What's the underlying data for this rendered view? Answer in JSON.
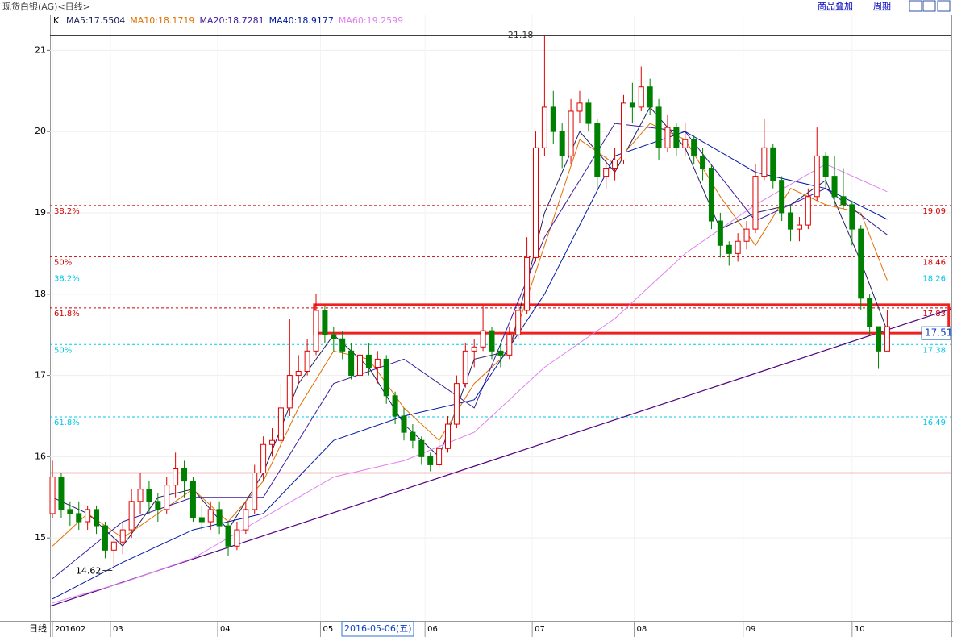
{
  "header": {
    "title": "现货白银(AG)<日线>",
    "buttons": [
      "商品叠加",
      "周期"
    ]
  },
  "chart_data": {
    "type": "candlestick",
    "indicator": "K",
    "x_axis_label": "日线",
    "cursor_date": "2016-05-06(五)",
    "xlim": [
      -0.28,
      102.3
    ],
    "xticks": [
      {
        "value": 0,
        "label": "201602"
      },
      {
        "value": 6.6,
        "label": "03"
      },
      {
        "value": 18.8,
        "label": "04"
      },
      {
        "value": 30.5,
        "label": "05"
      },
      {
        "value": 42.4,
        "label": "06"
      },
      {
        "value": 54.6,
        "label": "07"
      },
      {
        "value": 66.2,
        "label": "08"
      },
      {
        "value": 78.6,
        "label": "09"
      },
      {
        "value": 91.0,
        "label": "10"
      }
    ],
    "ylim": [
      13.98,
      21.44
    ],
    "yticks": [
      15,
      16,
      17,
      18,
      19,
      20,
      21
    ],
    "grid": true,
    "up_color": "#e00000",
    "down_color": "#008000",
    "ohlc": [
      [
        15.3,
        15.95,
        15.25,
        15.75
      ],
      [
        15.75,
        15.8,
        15.25,
        15.35
      ],
      [
        15.35,
        15.45,
        15.15,
        15.3
      ],
      [
        15.3,
        15.45,
        15.1,
        15.2
      ],
      [
        15.2,
        15.4,
        15.1,
        15.35
      ],
      [
        15.35,
        15.4,
        15.05,
        15.15
      ],
      [
        15.15,
        15.2,
        14.75,
        14.85
      ],
      [
        14.85,
        15.0,
        14.62,
        14.95
      ],
      [
        14.95,
        15.2,
        14.8,
        15.1
      ],
      [
        15.1,
        15.6,
        15.0,
        15.45
      ],
      [
        15.45,
        15.8,
        15.3,
        15.6
      ],
      [
        15.6,
        15.7,
        15.3,
        15.45
      ],
      [
        15.45,
        15.55,
        15.2,
        15.35
      ],
      [
        15.35,
        15.75,
        15.3,
        15.65
      ],
      [
        15.65,
        16.05,
        15.5,
        15.85
      ],
      [
        15.85,
        15.95,
        15.5,
        15.7
      ],
      [
        15.7,
        15.75,
        15.2,
        15.25
      ],
      [
        15.25,
        15.4,
        15.1,
        15.2
      ],
      [
        15.2,
        15.45,
        15.1,
        15.35
      ],
      [
        15.35,
        15.45,
        15.05,
        15.15
      ],
      [
        15.15,
        15.2,
        14.78,
        14.9
      ],
      [
        14.9,
        15.2,
        14.85,
        15.1
      ],
      [
        15.1,
        15.45,
        15.05,
        15.35
      ],
      [
        15.35,
        15.9,
        15.3,
        15.8
      ],
      [
        15.8,
        16.25,
        15.7,
        16.15
      ],
      [
        16.15,
        16.35,
        16.0,
        16.2
      ],
      [
        16.2,
        16.9,
        16.1,
        16.6
      ],
      [
        16.6,
        17.7,
        16.5,
        17.0
      ],
      [
        17.0,
        17.25,
        16.9,
        17.05
      ],
      [
        17.05,
        17.45,
        17.0,
        17.3
      ],
      [
        17.3,
        18.0,
        17.25,
        17.8
      ],
      [
        17.8,
        17.85,
        17.4,
        17.5
      ],
      [
        17.5,
        17.6,
        17.3,
        17.45
      ],
      [
        17.45,
        17.55,
        17.2,
        17.3
      ],
      [
        17.3,
        17.4,
        16.95,
        17.0
      ],
      [
        17.0,
        17.4,
        16.95,
        17.25
      ],
      [
        17.25,
        17.4,
        17.0,
        17.1
      ],
      [
        17.1,
        17.3,
        16.9,
        17.2
      ],
      [
        17.2,
        17.25,
        16.65,
        16.75
      ],
      [
        16.75,
        16.8,
        16.4,
        16.5
      ],
      [
        16.5,
        16.6,
        16.2,
        16.3
      ],
      [
        16.3,
        16.4,
        16.1,
        16.2
      ],
      [
        16.2,
        16.25,
        15.9,
        16.0
      ],
      [
        16.0,
        16.05,
        15.82,
        15.9
      ],
      [
        15.9,
        16.2,
        15.85,
        16.1
      ],
      [
        16.1,
        16.5,
        16.05,
        16.4
      ],
      [
        16.4,
        17.0,
        16.35,
        16.9
      ],
      [
        16.9,
        17.4,
        16.85,
        17.3
      ],
      [
        17.3,
        17.45,
        17.1,
        17.35
      ],
      [
        17.35,
        17.85,
        17.3,
        17.55
      ],
      [
        17.55,
        17.6,
        17.2,
        17.3
      ],
      [
        17.3,
        17.4,
        17.1,
        17.25
      ],
      [
        17.25,
        17.6,
        17.2,
        17.5
      ],
      [
        17.5,
        17.9,
        17.45,
        17.8
      ],
      [
        17.8,
        18.7,
        17.75,
        18.45
      ],
      [
        18.45,
        20.0,
        18.4,
        19.8
      ],
      [
        19.8,
        21.18,
        19.7,
        20.3
      ],
      [
        20.3,
        20.5,
        19.85,
        20.0
      ],
      [
        20.0,
        20.1,
        19.55,
        19.7
      ],
      [
        19.7,
        20.4,
        19.6,
        20.25
      ],
      [
        20.25,
        20.5,
        20.1,
        20.35
      ],
      [
        20.35,
        20.4,
        20.0,
        20.1
      ],
      [
        20.1,
        20.15,
        19.3,
        19.45
      ],
      [
        19.45,
        19.7,
        19.3,
        19.55
      ],
      [
        19.55,
        19.8,
        19.4,
        19.65
      ],
      [
        19.65,
        20.45,
        19.6,
        20.35
      ],
      [
        20.35,
        20.6,
        20.1,
        20.3
      ],
      [
        20.3,
        20.8,
        20.25,
        20.55
      ],
      [
        20.55,
        20.65,
        20.2,
        20.3
      ],
      [
        20.3,
        20.4,
        19.65,
        19.8
      ],
      [
        19.8,
        20.2,
        19.75,
        20.05
      ],
      [
        20.05,
        20.1,
        19.7,
        19.8
      ],
      [
        19.8,
        20.1,
        19.7,
        19.9
      ],
      [
        19.9,
        19.95,
        19.6,
        19.7
      ],
      [
        19.7,
        19.8,
        19.4,
        19.55
      ],
      [
        19.55,
        19.6,
        18.8,
        18.9
      ],
      [
        18.9,
        19.0,
        18.45,
        18.6
      ],
      [
        18.6,
        18.65,
        18.35,
        18.5
      ],
      [
        18.5,
        18.75,
        18.4,
        18.65
      ],
      [
        18.65,
        18.9,
        18.55,
        18.8
      ],
      [
        18.8,
        19.6,
        18.75,
        19.45
      ],
      [
        19.45,
        20.15,
        19.4,
        19.8
      ],
      [
        19.8,
        19.85,
        19.3,
        19.4
      ],
      [
        19.4,
        19.45,
        18.9,
        19.0
      ],
      [
        19.0,
        19.1,
        18.65,
        18.8
      ],
      [
        18.8,
        18.95,
        18.65,
        18.85
      ],
      [
        18.85,
        19.3,
        18.8,
        19.2
      ],
      [
        19.2,
        20.05,
        19.15,
        19.7
      ],
      [
        19.7,
        19.75,
        19.3,
        19.45
      ],
      [
        19.45,
        19.7,
        19.1,
        19.2
      ],
      [
        19.2,
        19.55,
        19.05,
        19.1
      ],
      [
        19.1,
        19.15,
        18.6,
        18.8
      ],
      [
        18.8,
        18.85,
        17.8,
        17.95
      ],
      [
        17.95,
        18.0,
        17.5,
        17.6
      ],
      [
        17.6,
        17.6,
        17.08,
        17.3
      ],
      [
        17.3,
        17.8,
        17.3,
        17.6
      ]
    ],
    "series": [
      {
        "name": "MA5:17.5504",
        "color": "#202060",
        "x": [
          0,
          4,
          8,
          12,
          16,
          20,
          24,
          28,
          32,
          36,
          40,
          44,
          48,
          52,
          56,
          60,
          64,
          68,
          72,
          76,
          80,
          84,
          88,
          92,
          95
        ],
        "values": [
          15.5,
          15.3,
          14.9,
          15.5,
          15.6,
          15.1,
          15.8,
          16.9,
          17.5,
          17.1,
          16.4,
          16.0,
          17.2,
          17.3,
          19.0,
          20.0,
          19.5,
          20.3,
          19.8,
          18.8,
          19.0,
          19.1,
          19.4,
          18.4,
          17.55
        ]
      },
      {
        "name": "MA10:18.1719",
        "color": "#e07000",
        "x": [
          0,
          4,
          8,
          12,
          16,
          20,
          24,
          28,
          32,
          36,
          40,
          44,
          48,
          52,
          56,
          60,
          64,
          68,
          72,
          76,
          80,
          84,
          88,
          92,
          95
        ],
        "values": [
          14.9,
          15.3,
          15.0,
          15.3,
          15.6,
          15.2,
          15.7,
          16.6,
          17.3,
          17.2,
          16.6,
          16.2,
          16.9,
          17.3,
          18.6,
          19.9,
          19.6,
          20.1,
          19.9,
          19.2,
          18.6,
          19.3,
          19.1,
          19.0,
          18.17
        ]
      },
      {
        "name": "MA20:18.7281",
        "color": "#3c1a9c",
        "x": [
          0,
          8,
          16,
          24,
          32,
          40,
          48,
          56,
          64,
          72,
          80,
          88,
          95
        ],
        "values": [
          14.5,
          15.2,
          15.5,
          15.5,
          16.9,
          17.2,
          16.6,
          18.7,
          20.1,
          20.0,
          18.9,
          19.3,
          18.73
        ]
      },
      {
        "name": "MA40:18.9177",
        "color": "#0018a8",
        "x": [
          0,
          8,
          16,
          24,
          32,
          40,
          48,
          56,
          64,
          72,
          80,
          88,
          95
        ],
        "values": [
          14.25,
          14.7,
          15.1,
          15.3,
          16.2,
          16.5,
          16.7,
          18.0,
          19.7,
          20.0,
          19.5,
          19.3,
          18.92
        ]
      },
      {
        "name": "MA60:19.2599",
        "color": "#e080f0",
        "x": [
          0,
          8,
          16,
          24,
          32,
          40,
          48,
          56,
          64,
          72,
          80,
          88,
          95
        ],
        "values": [
          14.2,
          14.45,
          14.75,
          15.25,
          15.75,
          15.95,
          16.3,
          17.1,
          17.7,
          18.5,
          19.1,
          19.6,
          19.26
        ]
      }
    ],
    "levels": [
      {
        "label": "38.2%",
        "value": 19.09,
        "color": "#d00000"
      },
      {
        "label": "50%",
        "value": 18.46,
        "color": "#d00000"
      },
      {
        "label": "61.8%",
        "value": 17.83,
        "color": "#d00000"
      },
      {
        "label": "38.2%",
        "value": 18.26,
        "color": "#00c8e8"
      },
      {
        "label": "50%",
        "value": 17.38,
        "color": "#00c8e8"
      },
      {
        "label": "61.8%",
        "value": 16.49,
        "color": "#00c8e8"
      }
    ],
    "high": {
      "value": 21.18,
      "x": 56,
      "color": "#000000"
    },
    "low": {
      "value": 14.62,
      "x": 7
    },
    "hline": {
      "value": 15.8,
      "color": "#d00000"
    },
    "trend_line": {
      "x": [
        -0.28,
        102.3
      ],
      "values": [
        14.16,
        17.82
      ],
      "color": "#500080"
    },
    "box": {
      "x": [
        29.8,
        102.0
      ],
      "values": [
        17.52,
        17.87
      ],
      "color": "#ee2020"
    },
    "last_price": 17.51
  }
}
